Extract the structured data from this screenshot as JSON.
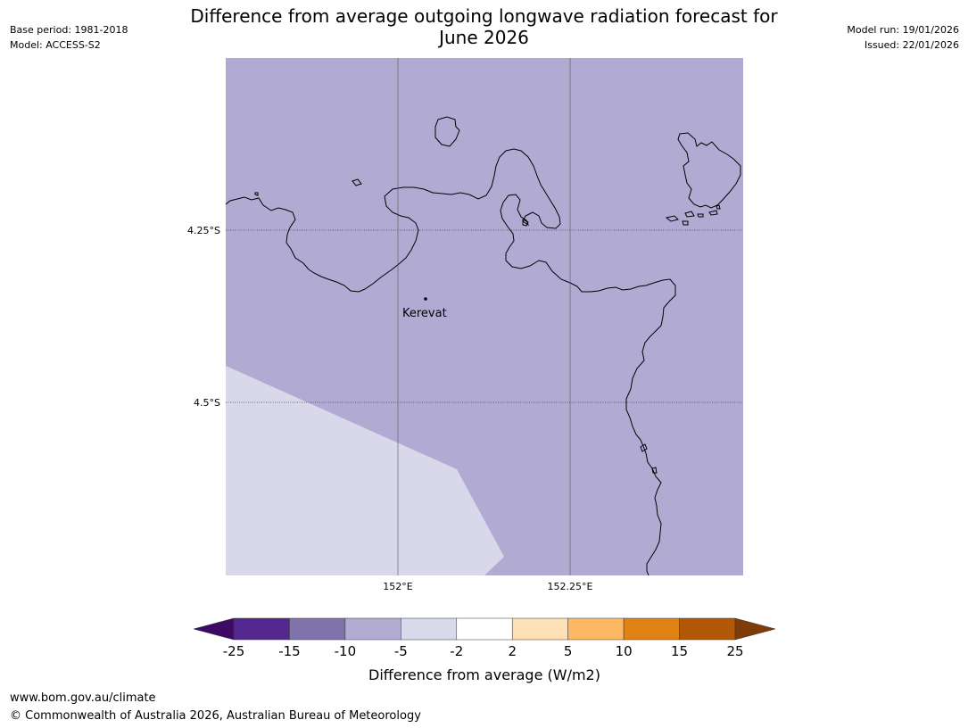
{
  "header": {
    "base_period": "Base period: 1981-2018",
    "model": "Model: ACCESS-S2",
    "title_line1": "Difference from average outgoing longwave radiation forecast for",
    "title_line2": "June 2026",
    "model_run": "Model run: 19/01/2026",
    "issued": "Issued: 22/01/2026"
  },
  "map": {
    "lat_labels": [
      "4.25°S",
      "4.5°S"
    ],
    "lon_labels": [
      "152°E",
      "152.25°E"
    ],
    "place": "Kerevat",
    "colors": {
      "land_sea_fill": "#b1abd3",
      "light_zone_fill": "#d8d8ea",
      "coastline": "#000000"
    }
  },
  "colorbar": {
    "ticks": [
      "-25",
      "-15",
      "-10",
      "-5",
      "-2",
      "2",
      "5",
      "10",
      "15",
      "25"
    ],
    "colors": [
      "#3f0a63",
      "#54278f",
      "#8073ac",
      "#b2abd2",
      "#d8daeb",
      "#ffffff",
      "#fee0b6",
      "#fdb863",
      "#e08214",
      "#b35806",
      "#7f3b08"
    ],
    "label": "Difference from average (W/m2)"
  },
  "footer": {
    "url": "www.bom.gov.au/climate",
    "copyright": "© Commonwealth of Australia 2026, Australian Bureau of Meteorology"
  }
}
